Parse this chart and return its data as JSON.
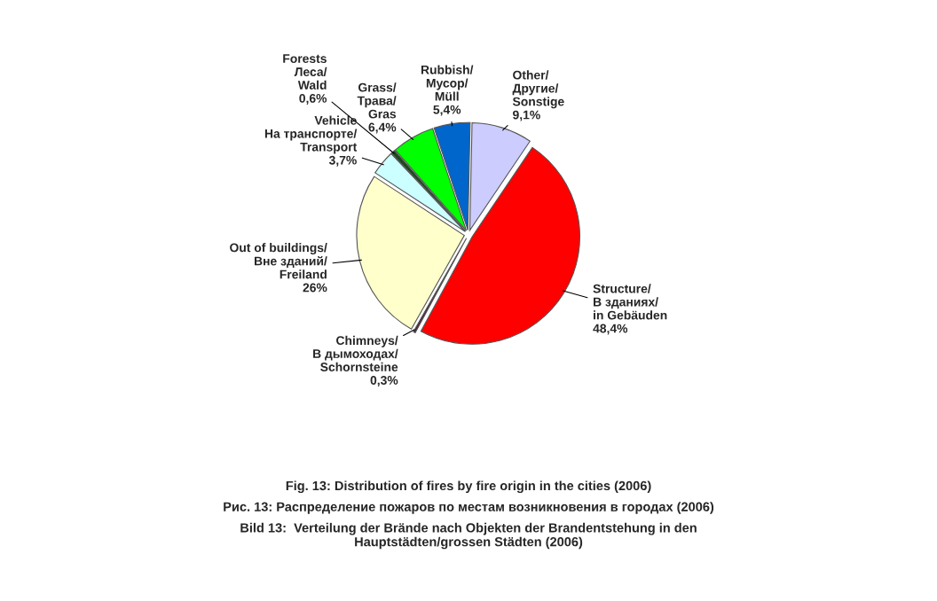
{
  "chart_data": {
    "type": "pie",
    "categories": [
      "Structure/\nВ зданиях/\nin Gebäuden",
      "Chimneys/\nВ дымоходах/\nSchornsteine",
      "Out of buildings/\nВне зданий/\nFreiland",
      "Vehicle\nНа транспорте/\nTransport",
      "Forests\nЛеса/\nWald",
      "Grass/\nТрава/\nGras",
      "Rubbish/\nМусор/\nMüll",
      "Other/\nДругие/\nSonstige"
    ],
    "values": [
      48.4,
      0.3,
      26,
      3.7,
      0.6,
      6.4,
      5.4,
      9.1
    ],
    "value_labels": [
      "48,4%",
      "0,3%",
      "26%",
      "3,7%",
      "0,6%",
      "6,4%",
      "5,4%",
      "9,1%"
    ],
    "colors": [
      "#ff0000",
      "#4a1a3a",
      "#ffffcc",
      "#ccffff",
      "#1a4a1a",
      "#00ff00",
      "#0066cc",
      "#ccccff"
    ],
    "annotations": [
      "Fig. 13: Distribution of fires by fire origin in the cities (2006)",
      "Рис. 13: Распределение пожаров по местам возникновения в городах (2006)",
      "Bild 13:  Verteilung der Brände nach Objekten der Brandentstehung in den\nHauptstädten/grossen Städten (2006)"
    ]
  }
}
